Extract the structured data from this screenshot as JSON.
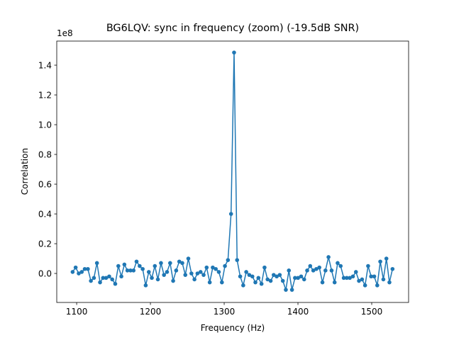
{
  "chart_data": {
    "type": "line",
    "title": "BG6LQV: sync in frequency (zoom) (-19.5dB SNR)",
    "xlabel": "Frequency (Hz)",
    "ylabel": "Correlation",
    "y_offset_label": "1e8",
    "xlim": [
      1073,
      1550
    ],
    "xticks": [
      1100,
      1200,
      1300,
      1400,
      1500
    ],
    "ylim": [
      -0.195,
      1.562
    ],
    "yticks": [
      {
        "value": 0,
        "label": "0.0"
      },
      {
        "value": 0.2,
        "label": "0.2"
      },
      {
        "value": 0.4,
        "label": "0.4"
      },
      {
        "value": 0.6,
        "label": "0.6"
      },
      {
        "value": 0.8,
        "label": "0.8"
      },
      {
        "value": 1.0,
        "label": "1.0"
      },
      {
        "value": 1.2,
        "label": "1.2"
      },
      {
        "value": 1.4,
        "label": "1.4"
      }
    ],
    "x": [
      1094.5,
      1098.6,
      1102.8,
      1106.9,
      1111.0,
      1115.2,
      1119.3,
      1123.4,
      1127.5,
      1131.7,
      1135.8,
      1139.9,
      1144.1,
      1148.2,
      1152.3,
      1156.5,
      1160.6,
      1164.7,
      1168.8,
      1173.0,
      1177.1,
      1181.2,
      1185.4,
      1189.5,
      1193.6,
      1197.8,
      1201.9,
      1206.0,
      1210.1,
      1214.3,
      1218.4,
      1222.5,
      1226.7,
      1230.8,
      1234.9,
      1239.1,
      1243.2,
      1247.3,
      1251.4,
      1255.6,
      1259.7,
      1263.8,
      1268.0,
      1272.1,
      1276.2,
      1280.4,
      1284.5,
      1288.6,
      1292.7,
      1296.9,
      1301.0,
      1305.1,
      1309.3,
      1313.4,
      1317.5,
      1321.7,
      1325.8,
      1329.9,
      1334.0,
      1338.2,
      1342.3,
      1346.4,
      1350.6,
      1354.7,
      1358.8,
      1363.0,
      1367.1,
      1371.2,
      1375.3,
      1379.5,
      1383.6,
      1387.7,
      1391.9,
      1396.0,
      1400.1,
      1404.3,
      1408.4,
      1412.5,
      1416.6,
      1420.8,
      1424.9,
      1429.0,
      1433.2,
      1437.3,
      1441.4,
      1445.6,
      1449.7,
      1453.8,
      1457.9,
      1462.1,
      1466.2,
      1470.3,
      1474.5,
      1478.6,
      1482.7,
      1486.9,
      1491.0,
      1495.1,
      1499.2,
      1503.4,
      1507.5,
      1511.6,
      1515.8,
      1519.9,
      1524.0,
      1528.2
    ],
    "series": [
      {
        "color": "#1f77b4",
        "values": [
          0.01,
          0.04,
          0.0,
          0.01,
          0.03,
          0.03,
          -0.05,
          -0.03,
          0.07,
          -0.06,
          -0.03,
          -0.03,
          -0.02,
          -0.04,
          -0.07,
          0.05,
          -0.02,
          0.06,
          0.02,
          0.02,
          0.02,
          0.08,
          0.05,
          0.03,
          -0.08,
          0.01,
          -0.03,
          0.05,
          -0.04,
          0.07,
          -0.01,
          0.01,
          0.07,
          -0.05,
          0.02,
          0.08,
          0.07,
          -0.01,
          0.1,
          0.0,
          -0.04,
          0.0,
          0.01,
          -0.01,
          0.04,
          -0.06,
          0.04,
          0.03,
          0.01,
          -0.06,
          0.05,
          0.09,
          0.4,
          1.485,
          0.09,
          -0.02,
          -0.08,
          0.01,
          -0.01,
          -0.02,
          -0.06,
          -0.03,
          -0.07,
          0.04,
          -0.04,
          -0.05,
          -0.01,
          -0.02,
          -0.01,
          -0.05,
          -0.11,
          0.02,
          -0.11,
          -0.03,
          -0.03,
          -0.02,
          -0.04,
          0.02,
          0.05,
          0.02,
          0.03,
          0.04,
          -0.06,
          0.02,
          0.11,
          0.02,
          -0.06,
          0.07,
          0.05,
          -0.03,
          -0.03,
          -0.03,
          -0.02,
          0.01,
          -0.05,
          -0.04,
          -0.08,
          0.05,
          -0.02,
          -0.02,
          -0.08,
          0.08,
          -0.04,
          0.1,
          -0.06,
          0.03
        ]
      }
    ]
  }
}
